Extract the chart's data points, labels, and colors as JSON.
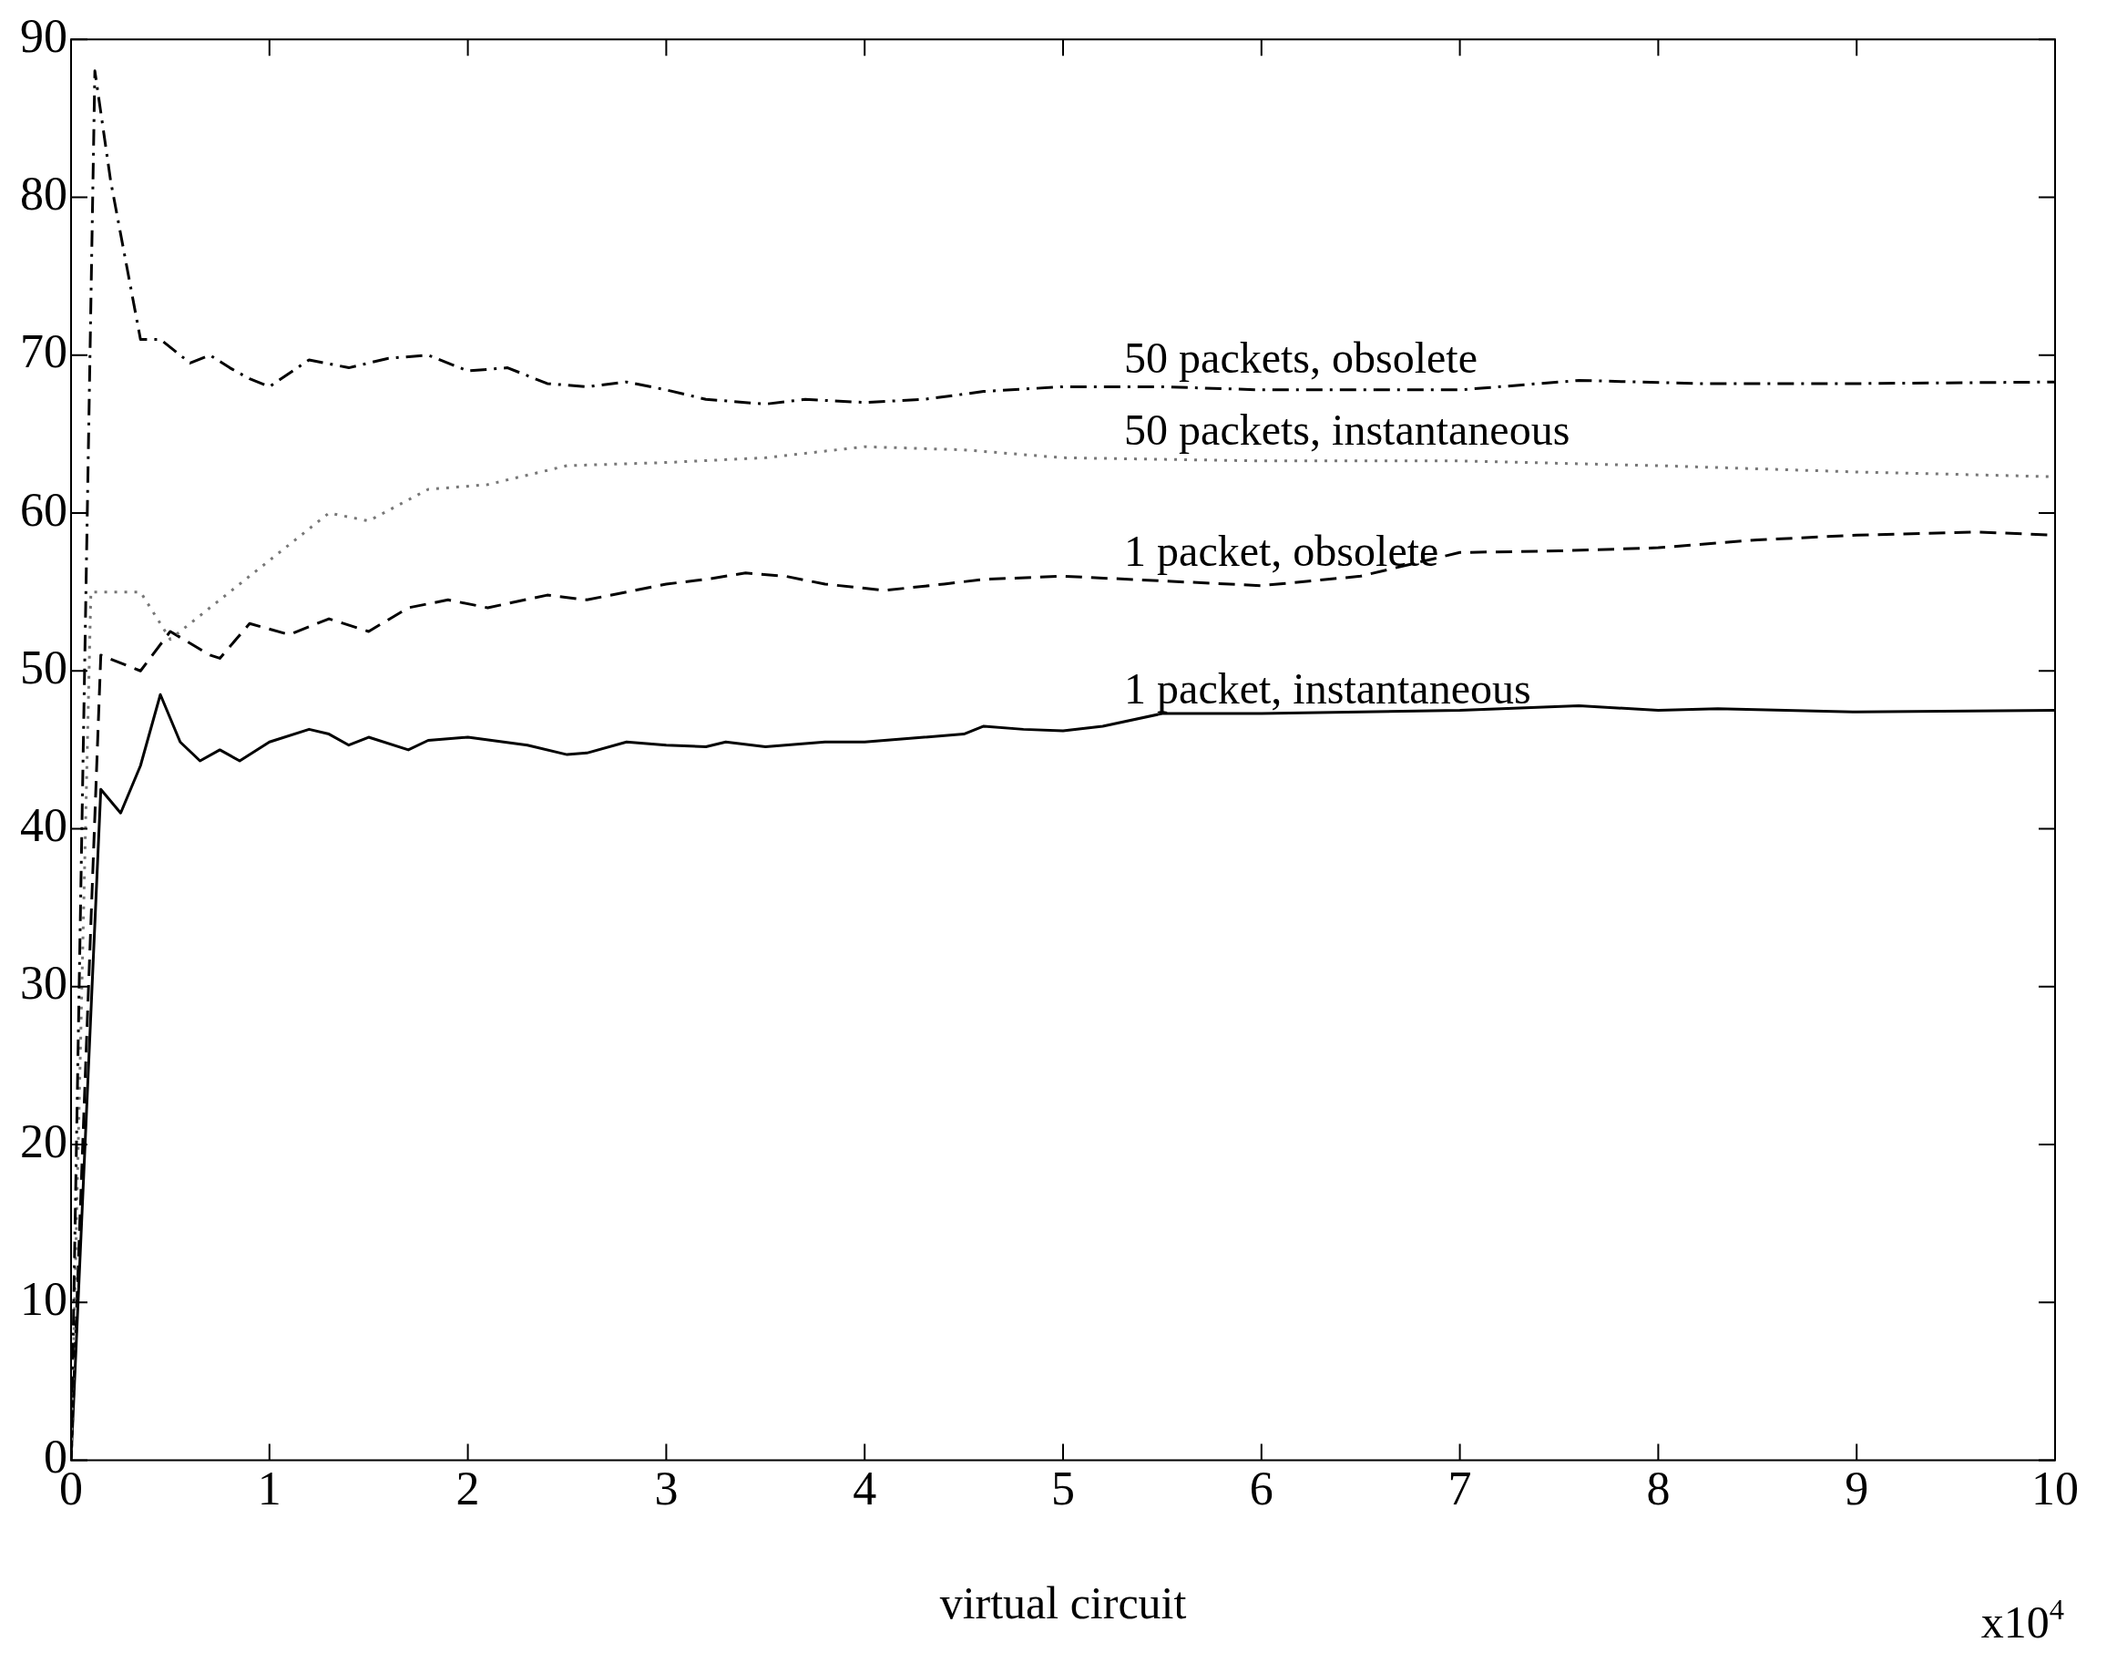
{
  "chart_data": {
    "type": "line",
    "xlabel": "virtual circuit",
    "annotations": [
      "x10$^{4}$"
    ],
    "xlim": [
      0,
      10
    ],
    "xticks": [
      0,
      1,
      2,
      3,
      4,
      5,
      6,
      7,
      8,
      9,
      10
    ],
    "ylim": [
      0,
      90
    ],
    "yticks": [
      0,
      10,
      20,
      30,
      40,
      50,
      60,
      70,
      80,
      90
    ],
    "grid": false,
    "legend": false,
    "marker": "none",
    "series": [
      {
        "name": "50 packets, obsolete",
        "color": "#000000",
        "line_style": "dashdot",
        "x": [
          0,
          0.12,
          0.2,
          0.35,
          0.45,
          0.6,
          0.7,
          0.8,
          0.9,
          1.0,
          1.2,
          1.4,
          1.6,
          1.8,
          2.0,
          2.2,
          2.4,
          2.6,
          2.8,
          3.0,
          3.2,
          3.5,
          3.7,
          4.0,
          4.3,
          4.6,
          5.0,
          5.5,
          6.0,
          7.0,
          7.6,
          8.2,
          9.0,
          10
        ],
        "values": [
          0,
          88,
          81,
          71,
          71,
          69.5,
          70,
          69.2,
          68.5,
          68,
          69.7,
          69.2,
          69.8,
          70,
          69,
          69.2,
          68.2,
          68,
          68.3,
          67.8,
          67.2,
          66.9,
          67.2,
          67,
          67.2,
          67.7,
          68,
          68,
          67.8,
          67.8,
          68.4,
          68.2,
          68.2,
          68.3
        ]
      },
      {
        "name": "50 packets, instantaneous",
        "color": "#777777",
        "line_style": "dotted",
        "x": [
          0,
          0.1,
          0.35,
          0.5,
          0.75,
          1.0,
          1.3,
          1.5,
          1.8,
          2.1,
          2.5,
          3.0,
          3.5,
          4.0,
          4.5,
          5.0,
          6.0,
          7.0,
          8.0,
          9.0,
          10
        ],
        "values": [
          0,
          55,
          55,
          52,
          54.5,
          57,
          60,
          59.5,
          61.5,
          61.8,
          63,
          63.2,
          63.5,
          64.2,
          64,
          63.5,
          63.3,
          63.3,
          63,
          62.6,
          62.3
        ]
      },
      {
        "name": "1 packet, obsolete",
        "color": "#000000",
        "line_style": "dashed",
        "x": [
          0,
          0.15,
          0.35,
          0.5,
          0.7,
          0.75,
          0.9,
          1.1,
          1.3,
          1.5,
          1.7,
          1.9,
          2.1,
          2.4,
          2.6,
          2.8,
          3.0,
          3.2,
          3.4,
          3.6,
          3.8,
          4.1,
          4.4,
          4.6,
          5.0,
          5.5,
          6.0,
          6.5,
          7.0,
          7.5,
          8.0,
          8.5,
          9.0,
          9.6,
          10
        ],
        "values": [
          0,
          51,
          50,
          52.5,
          51,
          50.8,
          53,
          52.3,
          53.3,
          52.5,
          54,
          54.5,
          54,
          54.8,
          54.5,
          55,
          55.5,
          55.8,
          56.2,
          56,
          55.5,
          55.1,
          55.5,
          55.8,
          56,
          55.7,
          55.4,
          56,
          57.5,
          57.6,
          57.8,
          58.3,
          58.6,
          58.8,
          58.6
        ]
      },
      {
        "name": "1 packet, instantaneous",
        "color": "#000000",
        "line_style": "solid",
        "x": [
          0,
          0.15,
          0.25,
          0.35,
          0.45,
          0.55,
          0.65,
          0.75,
          0.85,
          1.0,
          1.2,
          1.3,
          1.4,
          1.5,
          1.7,
          1.8,
          2.0,
          2.3,
          2.5,
          2.6,
          2.8,
          3.0,
          3.2,
          3.3,
          3.5,
          3.8,
          4.0,
          4.3,
          4.5,
          4.6,
          4.8,
          5.0,
          5.2,
          5.5,
          6.0,
          7.0,
          7.6,
          8.0,
          8.3,
          9.0,
          10
        ],
        "values": [
          0,
          42.5,
          41,
          44,
          48.5,
          45.5,
          44.3,
          45,
          44.3,
          45.5,
          46.3,
          46,
          45.3,
          45.8,
          45,
          45.6,
          45.8,
          45.3,
          44.7,
          44.8,
          45.5,
          45.3,
          45.2,
          45.5,
          45.2,
          45.5,
          45.5,
          45.8,
          46,
          46.5,
          46.3,
          46.2,
          46.5,
          47.3,
          47.3,
          47.5,
          47.8,
          47.5,
          47.6,
          47.4,
          47.5
        ]
      }
    ]
  }
}
